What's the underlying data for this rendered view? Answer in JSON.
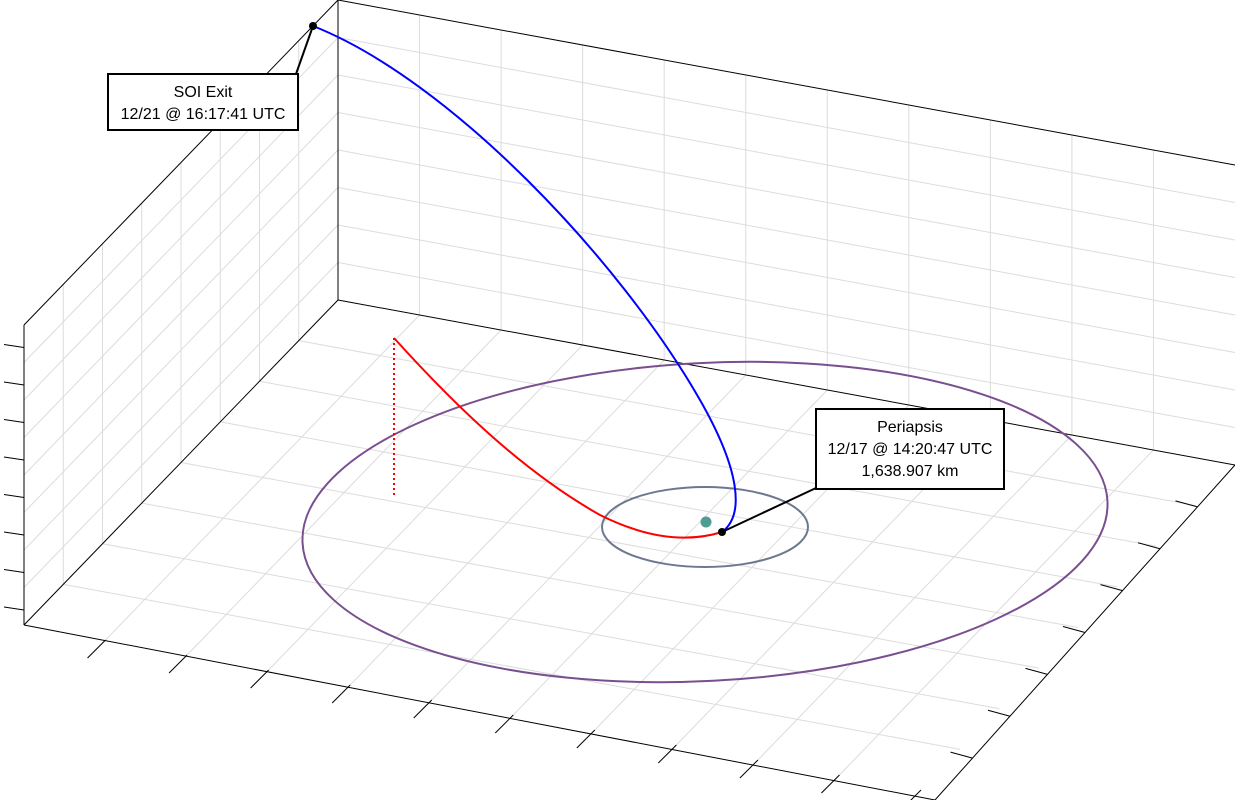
{
  "scene": {
    "colors": {
      "background": "#ffffff",
      "grid": "#dcdcdc",
      "axis": "#000000",
      "approach_trajectory": "#ff0000",
      "departure_trajectory": "#0000ff",
      "inner_orbit": "#6d7890",
      "outer_orbit": "#7a4f8f",
      "central_body": "#4e9d93",
      "marker": "#000000"
    }
  },
  "annotations": {
    "soi_exit": {
      "line1": "SOI Exit",
      "line2": "12/21 @ 16:17:41 UTC"
    },
    "periapsis": {
      "line1": "Periapsis",
      "line2": "12/17 @ 14:20:47 UTC",
      "line3": "1,638.907 km"
    }
  }
}
